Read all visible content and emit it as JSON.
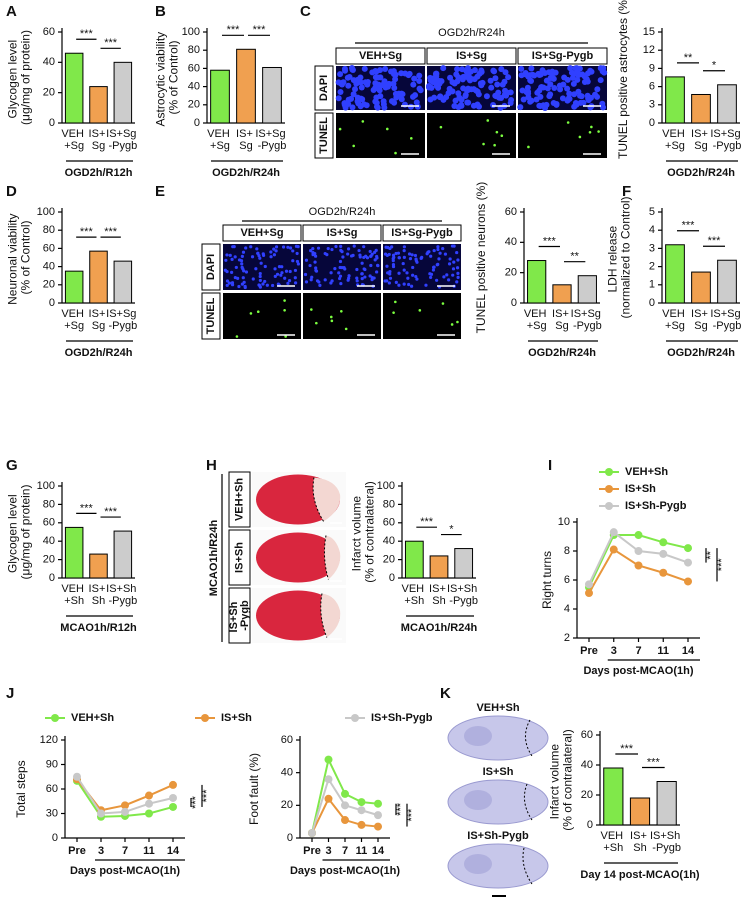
{
  "chart_data": [
    {
      "type": "bar",
      "label": "A",
      "ylabel": "Glycogen level\n(μg/mg of protein)",
      "categories": [
        "VEH\n+Sg",
        "IS+\nSg",
        "IS+Sg\n-Pygb"
      ],
      "values": [
        46,
        24,
        40
      ],
      "colors": [
        "#80e84a",
        "#f0a050",
        "#cccccc"
      ],
      "ylim": [
        0,
        60
      ],
      "yticks": [
        0,
        20,
        40,
        60
      ],
      "significance": [
        "***",
        "***"
      ],
      "group_label": "OGD2h/R12h"
    },
    {
      "type": "bar",
      "label": "B",
      "ylabel": "Astrocytic viability\n(% of Control)",
      "categories": [
        "VEH\n+Sg",
        "IS+\nSg",
        "IS+Sg\n-Pygb"
      ],
      "values": [
        58,
        81,
        61
      ],
      "colors": [
        "#80e84a",
        "#f0a050",
        "#cccccc"
      ],
      "ylim": [
        0,
        100
      ],
      "yticks": [
        0,
        20,
        40,
        60,
        80,
        100
      ],
      "significance": [
        "***",
        "***"
      ],
      "group_label": "OGD2h/R24h"
    },
    {
      "type": "bar",
      "ylabel": "TUNEL positive astrocytes (%)",
      "categories": [
        "VEH\n+Sg",
        "IS+\nSg",
        "IS+Sg\n-Pygb"
      ],
      "values": [
        7.6,
        4.7,
        6.3
      ],
      "colors": [
        "#80e84a",
        "#f0a050",
        "#cccccc"
      ],
      "ylim": [
        0,
        15
      ],
      "yticks": [
        0,
        3,
        6,
        9,
        12,
        15
      ],
      "significance": [
        "**",
        "*"
      ],
      "group_label": "OGD2h/R24h"
    },
    {
      "type": "bar",
      "label": "D",
      "ylabel": "Neuronal viability\n(% of Control)",
      "categories": [
        "VEH\n+Sg",
        "IS+\nSg",
        "IS+Sg\n-Pygb"
      ],
      "values": [
        35,
        57,
        46
      ],
      "colors": [
        "#80e84a",
        "#f0a050",
        "#cccccc"
      ],
      "ylim": [
        0,
        100
      ],
      "yticks": [
        0,
        20,
        40,
        60,
        80,
        100
      ],
      "significance": [
        "***",
        "***"
      ],
      "group_label": "OGD2h/R24h"
    },
    {
      "type": "bar",
      "ylabel": "TUNEL positive neurons (%)",
      "categories": [
        "VEH\n+Sg",
        "IS+\nSg",
        "IS+Sg\n-Pygb"
      ],
      "values": [
        28,
        12,
        18
      ],
      "colors": [
        "#80e84a",
        "#f0a050",
        "#cccccc"
      ],
      "ylim": [
        0,
        60
      ],
      "yticks": [
        0,
        20,
        40,
        60
      ],
      "significance": [
        "***",
        "**"
      ],
      "group_label": "OGD2h/R24h"
    },
    {
      "type": "bar",
      "label": "F",
      "ylabel": "LDH release\n(normalized to Control)",
      "categories": [
        "VEH\n+Sg",
        "IS+\nSg",
        "IS+Sg\n-Pygb"
      ],
      "values": [
        3.2,
        1.7,
        2.35
      ],
      "colors": [
        "#80e84a",
        "#f0a050",
        "#cccccc"
      ],
      "ylim": [
        0,
        5
      ],
      "yticks": [
        0,
        1,
        2,
        3,
        4,
        5
      ],
      "significance": [
        "***",
        "***"
      ],
      "group_label": "OGD2h/R24h"
    },
    {
      "type": "bar",
      "label": "G",
      "ylabel": "Glycogen level\n(μg/mg of protein)",
      "categories": [
        "VEH\n+Sh",
        "IS+\nSh",
        "IS+Sh\n-Pygb"
      ],
      "values": [
        55,
        26,
        51
      ],
      "colors": [
        "#80e84a",
        "#f0a050",
        "#cccccc"
      ],
      "ylim": [
        0,
        100
      ],
      "yticks": [
        0,
        20,
        40,
        60,
        80,
        100
      ],
      "significance": [
        "***",
        "***"
      ],
      "group_label": "MCAO1h/R12h"
    },
    {
      "type": "bar",
      "ylabel": "Infarct volume\n(% of contralateral)",
      "categories": [
        "VEH\n+Sh",
        "IS+\nSh",
        "IS+Sh\n-Pygb"
      ],
      "values": [
        40,
        24,
        32
      ],
      "colors": [
        "#80e84a",
        "#f0a050",
        "#cccccc"
      ],
      "ylim": [
        0,
        100
      ],
      "yticks": [
        0,
        20,
        40,
        60,
        80,
        100
      ],
      "significance": [
        "***",
        "*"
      ],
      "group_label": "MCAO1h/R24h"
    },
    {
      "type": "line",
      "label": "I",
      "ylabel": "Right turns",
      "xlabel": "Days post-MCAO(1h)",
      "categories": [
        "Pre",
        "3",
        "7",
        "11",
        "14"
      ],
      "series": [
        {
          "name": "VEH+Sh",
          "color": "#80e84a",
          "values": [
            5.5,
            9.1,
            9.1,
            8.6,
            8.2
          ]
        },
        {
          "name": "IS+Sh",
          "color": "#e8963c",
          "values": [
            5.1,
            8.1,
            7.0,
            6.5,
            5.9
          ]
        },
        {
          "name": "IS+Sh-Pygb",
          "color": "#c8c8c8",
          "values": [
            5.7,
            9.3,
            8.0,
            7.8,
            7.2
          ]
        }
      ],
      "ylim": [
        2,
        10
      ],
      "yticks": [
        2,
        4,
        6,
        8,
        10
      ],
      "legend": "top-left",
      "significance": [
        "**",
        "***"
      ]
    },
    {
      "type": "line",
      "label": "J",
      "ylabel": "Total steps",
      "xlabel": "Days post-MCAO(1h)",
      "categories": [
        "Pre",
        "3",
        "7",
        "11",
        "14"
      ],
      "series": [
        {
          "name": "VEH+Sh",
          "color": "#80e84a",
          "values": [
            70,
            26,
            27,
            30,
            38
          ]
        },
        {
          "name": "IS+Sh",
          "color": "#e8963c",
          "values": [
            72,
            34,
            40,
            52,
            65
          ]
        },
        {
          "name": "IS+Sh-Pygb",
          "color": "#c8c8c8",
          "values": [
            75,
            30,
            32,
            42,
            49
          ]
        }
      ],
      "ylim": [
        0,
        120
      ],
      "yticks": [
        0,
        30,
        60,
        90,
        120
      ],
      "legend": "top",
      "significance": [
        "***",
        "***"
      ]
    },
    {
      "type": "line",
      "ylabel": "Foot fault (%)",
      "xlabel": "Days post-MCAO(1h)",
      "categories": [
        "Pre",
        "3",
        "7",
        "11",
        "14"
      ],
      "series": [
        {
          "color": "#80e84a",
          "values": [
            3,
            48,
            27,
            22,
            21
          ]
        },
        {
          "color": "#e8963c",
          "values": [
            3,
            24,
            11,
            8,
            7
          ]
        },
        {
          "color": "#c8c8c8",
          "values": [
            3,
            36,
            20,
            17,
            14
          ]
        }
      ],
      "ylim": [
        0,
        60
      ],
      "yticks": [
        0,
        20,
        40,
        60
      ],
      "significance": [
        "***",
        "***"
      ]
    },
    {
      "type": "bar",
      "ylabel": "Infarct volume\n(% of contralateral)",
      "categories": [
        "VEH\n+Sh",
        "IS+\nSh",
        "IS+Sh\n-Pygb"
      ],
      "values": [
        38,
        18,
        29
      ],
      "colors": [
        "#80e84a",
        "#f0a050",
        "#cccccc"
      ],
      "ylim": [
        0,
        60
      ],
      "yticks": [
        0,
        20,
        40,
        60
      ],
      "significance": [
        "***",
        "***"
      ],
      "group_label": "Day 14 post-MCAO(1h)"
    }
  ],
  "image_panels": [
    {
      "label": "C",
      "title": "OGD2h/R24h",
      "columns": [
        "VEH+Sg",
        "IS+Sg",
        "IS+Sg-Pygb"
      ],
      "rows": [
        "DAPI",
        "TUNEL"
      ],
      "row_colors": [
        "#2020d0",
        "#66dd33"
      ]
    },
    {
      "label": "E",
      "title": "OGD2h/R24h",
      "columns": [
        "VEH+Sg",
        "IS+Sg",
        "IS+Sg-Pygb"
      ],
      "rows": [
        "DAPI",
        "TUNEL"
      ],
      "row_colors": [
        "#2020d0",
        "#66dd33"
      ]
    },
    {
      "label": "H",
      "title": "MCAO1h/R24h",
      "rows": [
        "VEH+Sh",
        "IS+Sh",
        "IS+Sh\n-Pygb"
      ]
    },
    {
      "label": "K",
      "rows": [
        "VEH+Sh",
        "IS+Sh",
        "IS+Sh-Pygb"
      ]
    }
  ]
}
